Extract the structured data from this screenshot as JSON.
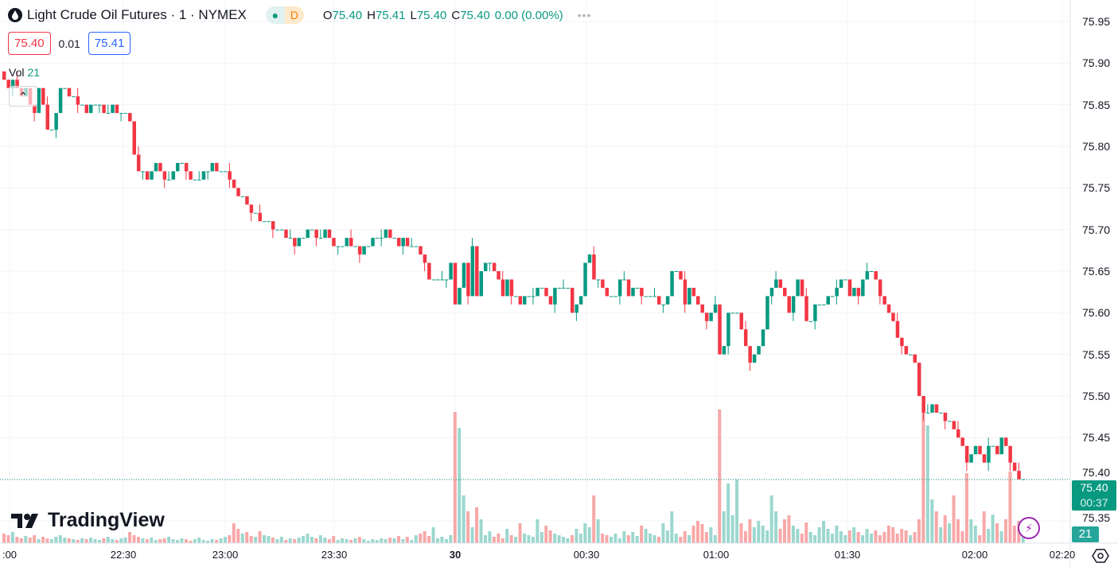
{
  "header": {
    "symbol_title": "Light Crude Oil Futures · 1 · NYMEX",
    "status_badge": "D",
    "ohlc": {
      "o_label": "O",
      "o": "75.40",
      "h_label": "H",
      "h": "75.41",
      "l_label": "L",
      "l": "75.40",
      "c_label": "C",
      "c": "75.40",
      "change": "0.00 (0.00%)"
    },
    "more": "•••"
  },
  "quote": {
    "sell": "75.40",
    "spread": "0.01",
    "buy": "75.41"
  },
  "volume_legend": {
    "label": "Vol",
    "value": "21"
  },
  "logo_text": "TradingView",
  "current_price": {
    "price": "75.40",
    "countdown": "00:37",
    "volume": "21"
  },
  "colors": {
    "up": "#089981",
    "down": "#f23645",
    "vol_up": "#9bd7cf",
    "vol_down": "#f7a8a8",
    "grid": "#f0f3fa"
  },
  "chart_data": {
    "type": "candlestick",
    "interval": "1 minute",
    "price_ticks": [
      "75.95",
      "75.90",
      "75.85",
      "75.80",
      "75.75",
      "75.70",
      "75.65",
      "75.60",
      "75.55",
      "75.50",
      "75.45",
      "75.40",
      "75.35"
    ],
    "ylim": [
      75.35,
      75.95
    ],
    "time_ticks": [
      ":00",
      "22:30",
      "23:00",
      "23:30",
      "30",
      "00:30",
      "01:00",
      "01:30",
      "02:00",
      "02:20"
    ],
    "grid": true,
    "close": [
      75.88,
      75.87,
      75.88,
      75.87,
      75.86,
      75.87,
      75.85,
      75.84,
      75.87,
      75.85,
      75.82,
      75.82,
      75.84,
      75.87,
      75.87,
      75.86,
      75.86,
      75.85,
      75.85,
      75.84,
      75.85,
      75.85,
      75.85,
      75.84,
      75.84,
      75.85,
      75.84,
      75.84,
      75.84,
      75.83,
      75.79,
      75.77,
      75.77,
      75.76,
      75.77,
      75.78,
      75.77,
      75.76,
      75.76,
      75.77,
      75.78,
      75.78,
      75.77,
      75.76,
      75.76,
      75.76,
      75.77,
      75.77,
      75.78,
      75.77,
      75.77,
      75.77,
      75.76,
      75.75,
      75.74,
      75.74,
      75.73,
      75.72,
      75.72,
      75.71,
      75.71,
      75.71,
      75.7,
      75.7,
      75.7,
      75.69,
      75.69,
      75.68,
      75.69,
      75.69,
      75.7,
      75.7,
      75.69,
      75.69,
      75.7,
      75.69,
      75.68,
      75.68,
      75.68,
      75.69,
      75.68,
      75.68,
      75.67,
      75.68,
      75.68,
      75.69,
      75.69,
      75.69,
      75.7,
      75.69,
      75.69,
      75.68,
      75.69,
      75.68,
      75.68,
      75.68,
      75.67,
      75.66,
      75.64,
      75.64,
      75.64,
      75.64,
      75.64,
      75.66,
      75.61,
      75.63,
      75.66,
      75.62,
      75.68,
      75.62,
      75.65,
      75.66,
      75.66,
      75.65,
      75.64,
      75.62,
      75.64,
      75.62,
      75.62,
      75.61,
      75.62,
      75.62,
      75.62,
      75.63,
      75.63,
      75.62,
      75.61,
      75.63,
      75.63,
      75.63,
      75.63,
      75.6,
      75.61,
      75.62,
      75.66,
      75.67,
      75.64,
      75.64,
      75.63,
      75.62,
      75.62,
      75.62,
      75.64,
      75.64,
      75.62,
      75.63,
      75.63,
      75.62,
      75.62,
      75.62,
      75.62,
      75.61,
      75.61,
      75.62,
      75.65,
      75.65,
      75.64,
      75.61,
      75.63,
      75.62,
      75.61,
      75.6,
      75.59,
      75.6,
      75.61,
      75.55,
      75.56,
      75.6,
      75.6,
      75.6,
      75.58,
      75.56,
      75.54,
      75.55,
      75.56,
      75.58,
      75.62,
      75.63,
      75.64,
      75.63,
      75.62,
      75.6,
      75.62,
      75.64,
      75.62,
      75.59,
      75.59,
      75.61,
      75.61,
      75.61,
      75.62,
      75.62,
      75.63,
      75.64,
      75.64,
      75.62,
      75.63,
      75.62,
      75.64,
      75.65,
      75.65,
      75.64,
      75.62,
      75.61,
      75.6,
      75.59,
      75.57,
      75.56,
      75.55,
      75.55,
      75.54,
      75.5,
      75.48,
      75.48,
      75.49,
      75.48,
      75.48,
      75.47,
      75.47,
      75.46,
      75.45,
      75.44,
      75.42,
      75.43,
      75.44,
      75.43,
      75.42,
      75.44,
      75.44,
      75.43,
      75.45,
      75.44,
      75.42,
      75.41,
      75.4,
      75.4
    ],
    "volume": [
      12,
      10,
      14,
      8,
      6,
      9,
      7,
      10,
      5,
      8,
      6,
      5,
      8,
      10,
      7,
      6,
      5,
      4,
      6,
      5,
      7,
      5,
      4,
      6,
      8,
      5,
      4,
      6,
      7,
      14,
      10,
      8,
      6,
      5,
      7,
      4,
      5,
      6,
      8,
      5,
      4,
      6,
      5,
      3,
      5,
      7,
      4,
      3,
      5,
      4,
      6,
      8,
      10,
      25,
      18,
      12,
      14,
      9,
      8,
      15,
      10,
      9,
      7,
      5,
      8,
      4,
      6,
      5,
      7,
      9,
      12,
      8,
      6,
      10,
      7,
      5,
      9,
      4,
      6,
      5,
      4,
      6,
      8,
      5,
      3,
      5,
      4,
      6,
      5,
      7,
      6,
      9,
      5,
      8,
      4,
      10,
      12,
      15,
      9,
      20,
      6,
      8,
      5,
      10,
      165,
      145,
      60,
      40,
      20,
      45,
      30,
      10,
      15,
      8,
      12,
      6,
      18,
      10,
      8,
      25,
      12,
      10,
      8,
      30,
      14,
      22,
      16,
      12,
      10,
      8,
      6,
      10,
      18,
      12,
      25,
      20,
      60,
      30,
      12,
      10,
      8,
      12,
      6,
      15,
      10,
      14,
      9,
      22,
      18,
      12,
      10,
      8,
      25,
      16,
      40,
      12,
      8,
      15,
      10,
      22,
      28,
      24,
      14,
      20,
      10,
      168,
      40,
      75,
      35,
      80,
      25,
      15,
      30,
      20,
      28,
      22,
      16,
      60,
      40,
      18,
      30,
      35,
      22,
      18,
      12,
      26,
      14,
      10,
      20,
      28,
      18,
      12,
      22,
      15,
      10,
      16,
      20,
      14,
      10,
      18,
      12,
      16,
      10,
      14,
      22,
      20,
      12,
      18,
      16,
      10,
      14,
      30,
      165,
      148,
      55,
      40,
      20,
      35,
      25,
      60,
      30,
      15,
      88,
      30,
      22,
      10,
      40,
      18,
      36,
      25,
      15,
      30,
      90,
      22,
      28,
      21
    ]
  }
}
